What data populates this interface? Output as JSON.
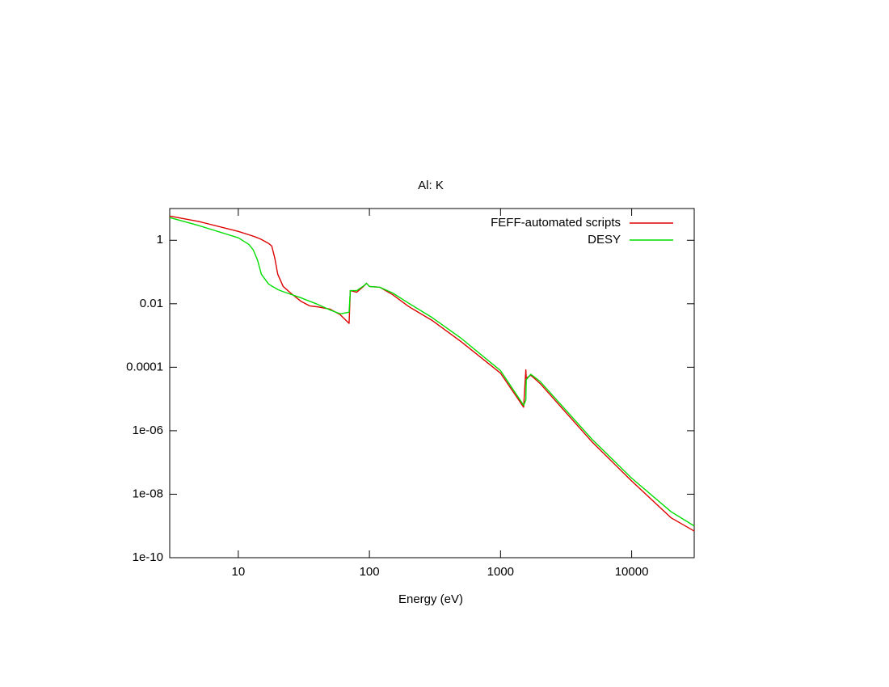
{
  "chart_data": {
    "type": "line",
    "title": "Al: K",
    "xlabel": "Energy (eV)",
    "xscale": "log",
    "yscale": "log",
    "xlim": [
      3,
      30000
    ],
    "ylim": [
      1e-10,
      10
    ],
    "xticks": [
      10,
      100,
      1000,
      10000
    ],
    "yticks": [
      1,
      0.01,
      0.0001,
      {
        "value": 1e-06,
        "label": "1e-06"
      },
      {
        "value": 1e-08,
        "label": "1e-08"
      },
      {
        "value": 1e-10,
        "label": "1e-10"
      }
    ],
    "legend": "top-right",
    "x": [
      3,
      5,
      10,
      12,
      13,
      14,
      15,
      17,
      18,
      19,
      20,
      22,
      25,
      30,
      35,
      40,
      50,
      60,
      70,
      71.5,
      80,
      90,
      95,
      100,
      120,
      150,
      200,
      300,
      500,
      1000,
      1500,
      1560,
      1570,
      1700,
      2000,
      5000,
      10000,
      20000,
      30000
    ],
    "series": [
      {
        "name": "FEFF-automated scripts",
        "color": "#dd0000",
        "values": [
          5.8,
          3.9,
          1.9,
          1.5,
          1.35,
          1.2,
          1.06,
          0.8,
          0.66,
          0.27,
          0.085,
          0.035,
          0.022,
          0.012,
          0.0086,
          0.008,
          0.0068,
          0.0045,
          0.0024,
          0.026,
          0.023,
          0.035,
          0.044,
          0.035,
          0.033,
          0.0195,
          0.0081,
          0.003,
          0.00064,
          6.5e-05,
          5.5e-06,
          8.3e-05,
          4.5e-05,
          5.6e-05,
          3.1e-05,
          4.4e-07,
          2.6e-08,
          1.8e-09,
          6.9e-10
        ]
      },
      {
        "name": "DESY",
        "color": "#00dd00",
        "values": [
          5.2,
          2.9,
          1.2,
          0.75,
          0.5,
          0.24,
          0.085,
          0.042,
          0.036,
          0.032,
          0.028,
          0.024,
          0.02,
          0.0154,
          0.012,
          0.0097,
          0.0064,
          0.0048,
          0.0054,
          0.026,
          0.026,
          0.036,
          0.044,
          0.035,
          0.033,
          0.022,
          0.0103,
          0.0037,
          0.00082,
          7.8e-05,
          6.3e-06,
          9.4e-06,
          4e-05,
          6e-05,
          3.6e-05,
          5.3e-07,
          3.2e-08,
          2.8e-09,
          1e-09
        ]
      }
    ]
  }
}
